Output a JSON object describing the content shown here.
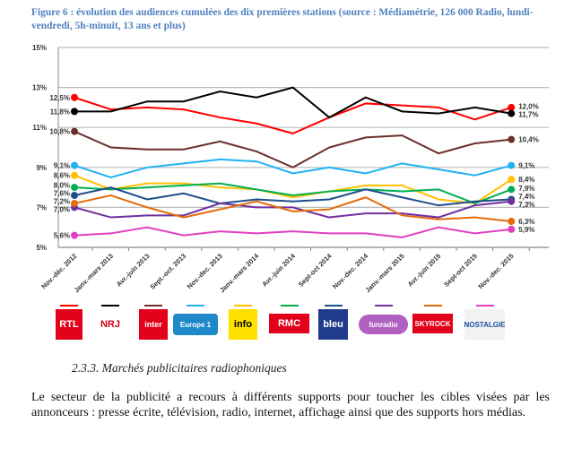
{
  "title": "Figure 6 : évolution des audiences cumulées des dix premières stations (source : Médiamétrie, 126 000 Radio, lundi-vendredi, 5h-minuit, 13 ans et plus)",
  "chart_data": {
    "type": "line",
    "title": "Figure 6 : évolution des audiences cumulées des dix premières stations (source : Médiamétrie, 126 000 Radio, lundi-vendredi, 5h-minuit, 13 ans et plus)",
    "categories": [
      "Nov.-déc. 2012",
      "Janv.-mars 2013",
      "Avr.-juin 2013",
      "Sept.-oct. 2013",
      "Nov.-dec. 2013",
      "Janv.-mars 2014",
      "Avr.-juin 2014",
      "Sept-oct 2014",
      "Nov.-dec. 2014",
      "Janv.-mars 2015",
      "Avr.-juin 2015",
      "Sept-oct 2015",
      "Nov.-dec. 2015"
    ],
    "ylim": [
      5,
      15
    ],
    "yticks": [
      "5%",
      "7%",
      "9%",
      "11%",
      "13%",
      "15%"
    ],
    "grid": true,
    "legend": "bottom (station logos)",
    "series": [
      {
        "name": "RTL",
        "color": "#FF0000",
        "values": [
          12.5,
          11.9,
          12.0,
          11.9,
          11.5,
          11.2,
          10.7,
          11.5,
          12.2,
          12.1,
          12.0,
          11.4,
          12.0
        ],
        "start_label": "12,5%",
        "end_label": "12,0%"
      },
      {
        "name": "NRJ",
        "color": "#000000",
        "values": [
          11.8,
          11.8,
          12.3,
          12.3,
          12.8,
          12.5,
          13.0,
          11.5,
          12.5,
          11.8,
          11.7,
          12.0,
          11.7
        ],
        "start_label": "11,8%",
        "end_label": "11,7%"
      },
      {
        "name": "France Inter",
        "color": "#6B2F2A",
        "values": [
          10.8,
          10.0,
          9.9,
          9.9,
          10.3,
          9.8,
          9.0,
          10.0,
          10.5,
          10.6,
          9.7,
          10.2,
          10.4
        ],
        "start_label": "10,8%",
        "end_label": "10,4%"
      },
      {
        "name": "Europe 1",
        "color": "#1FB2F0",
        "values": [
          9.1,
          8.5,
          9.0,
          9.2,
          9.4,
          9.3,
          8.7,
          9.0,
          8.7,
          9.2,
          8.9,
          8.6,
          9.1
        ],
        "start_label": "9,1%",
        "end_label": "9,1%"
      },
      {
        "name": "France Info",
        "color": "#FFC000",
        "values": [
          8.6,
          7.9,
          8.2,
          8.2,
          8.0,
          7.9,
          7.5,
          7.8,
          8.1,
          8.1,
          7.4,
          7.2,
          8.4
        ],
        "start_label": "8,6%",
        "end_label": "8,4%"
      },
      {
        "name": "RMC",
        "color": "#00B050",
        "values": [
          8.0,
          7.9,
          8.0,
          8.1,
          8.2,
          7.9,
          7.6,
          7.8,
          7.9,
          7.8,
          7.9,
          7.2,
          7.9
        ],
        "start_label": "8,0%",
        "end_label": "7,9%"
      },
      {
        "name": "France Bleu",
        "color": "#1F4E8C",
        "values": [
          7.6,
          8.0,
          7.4,
          7.7,
          7.2,
          7.4,
          7.3,
          7.4,
          7.9,
          7.5,
          7.1,
          7.3,
          7.4
        ],
        "start_label": "7,6%",
        "end_label": "7,4%"
      },
      {
        "name": "Fun Radio",
        "color": "#7030A0",
        "values": [
          7.0,
          6.5,
          6.6,
          6.6,
          7.2,
          7.0,
          7.0,
          6.5,
          6.7,
          6.7,
          6.5,
          7.1,
          7.3
        ],
        "start_label": "7,0%",
        "end_label": "7,3%"
      },
      {
        "name": "Skyrock",
        "color": "#E46C0A",
        "values": [
          7.2,
          7.6,
          7.0,
          6.5,
          6.9,
          7.3,
          6.8,
          6.9,
          7.5,
          6.6,
          6.4,
          6.5,
          6.3
        ],
        "start_label": "7,2%",
        "end_label": "6,3%"
      },
      {
        "name": "Nostalgie",
        "color": "#E040C0",
        "values": [
          5.6,
          5.7,
          6.0,
          5.6,
          5.8,
          5.7,
          5.8,
          5.7,
          5.7,
          5.5,
          6.0,
          5.7,
          5.9
        ],
        "start_label": "5,6%",
        "end_label": "5,9%"
      }
    ]
  },
  "logos": [
    {
      "text": "RTL",
      "bg": "#E2001A",
      "fg": "#ffffff"
    },
    {
      "text": "NRJ",
      "bg": "#ffffff",
      "fg": "#D0021B"
    },
    {
      "text": "inter",
      "bg": "#E2001A",
      "fg": "#ffffff"
    },
    {
      "text": "Europe 1",
      "bg": "#1E88C8",
      "fg": "#ffffff"
    },
    {
      "text": "info",
      "bg": "#FFE000",
      "fg": "#000000"
    },
    {
      "text": "RMC",
      "bg": "#E2001A",
      "fg": "#ffffff"
    },
    {
      "text": "bleu",
      "bg": "#1F3C8C",
      "fg": "#ffffff"
    },
    {
      "text": "funradio",
      "bg": "#B060C0",
      "fg": "#ffffff"
    },
    {
      "text": "SKYROCK",
      "bg": "#E2001A",
      "fg": "#ffffff"
    },
    {
      "text": "NOSTALGIE",
      "bg": "#f2f2f2",
      "fg": "#1F4E9C"
    }
  ],
  "section_heading": "2.3.3.  Marchés publicitaires radiophoniques",
  "paragraph": "Le secteur de la publicité a recours à différents supports pour toucher les cibles visées par les annonceurs : presse écrite, télévision, radio, internet, affichage ainsi que des supports hors médias."
}
